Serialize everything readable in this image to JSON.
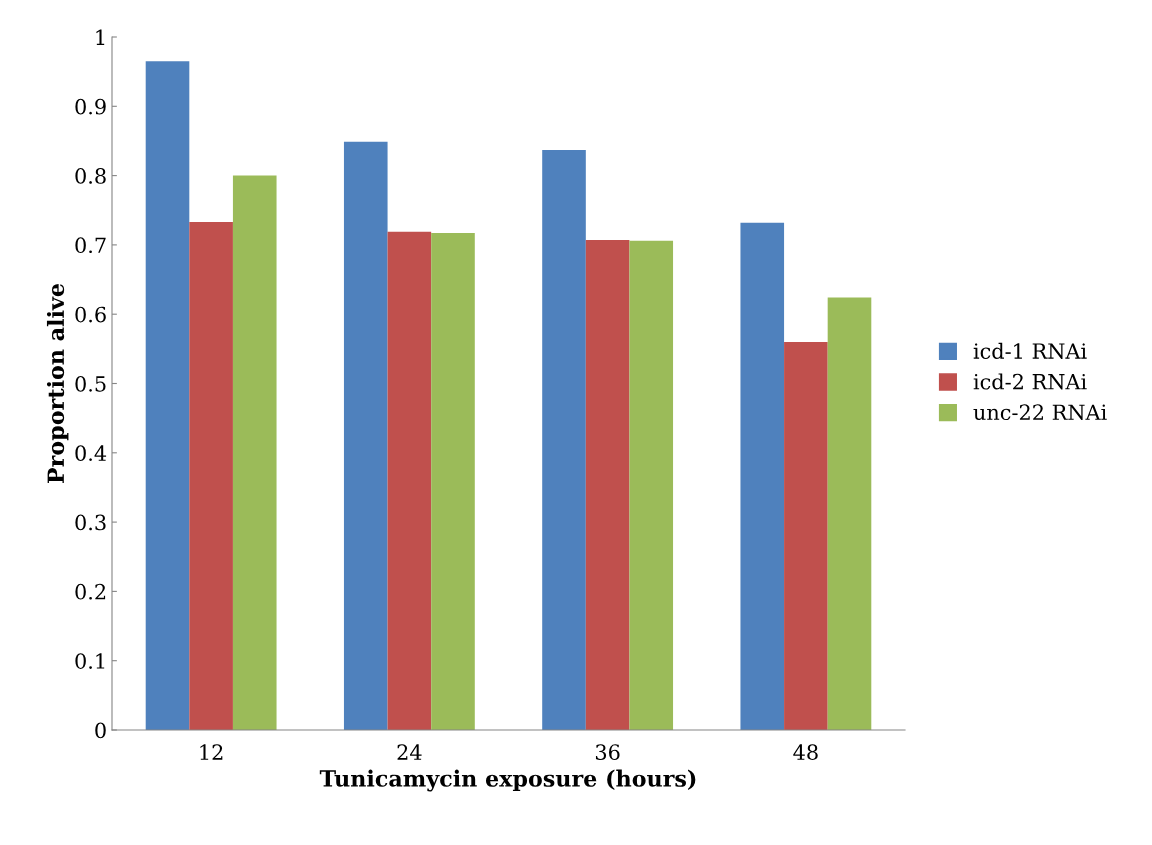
{
  "chart_data": {
    "type": "bar",
    "xlabel": "Tunicamycin exposure (hours)",
    "ylabel": "Proportion alive",
    "categories": [
      "12",
      "24",
      "36",
      "48"
    ],
    "series": [
      {
        "name": "icd-1 RNAi",
        "color": "#4f81bd",
        "values": [
          0.965,
          0.849,
          0.837,
          0.732
        ]
      },
      {
        "name": "icd-2 RNAi",
        "color": "#c0504d",
        "values": [
          0.733,
          0.719,
          0.707,
          0.56
        ]
      },
      {
        "name": "unc-22 RNAi",
        "color": "#9bbb59",
        "values": [
          0.8,
          0.717,
          0.706,
          0.624
        ]
      }
    ],
    "ylim": [
      0,
      1
    ],
    "yticks": [
      0,
      0.1,
      0.2,
      0.3,
      0.4,
      0.5,
      0.6,
      0.7,
      0.8,
      0.9,
      1
    ],
    "grid": false,
    "legend": "right"
  }
}
